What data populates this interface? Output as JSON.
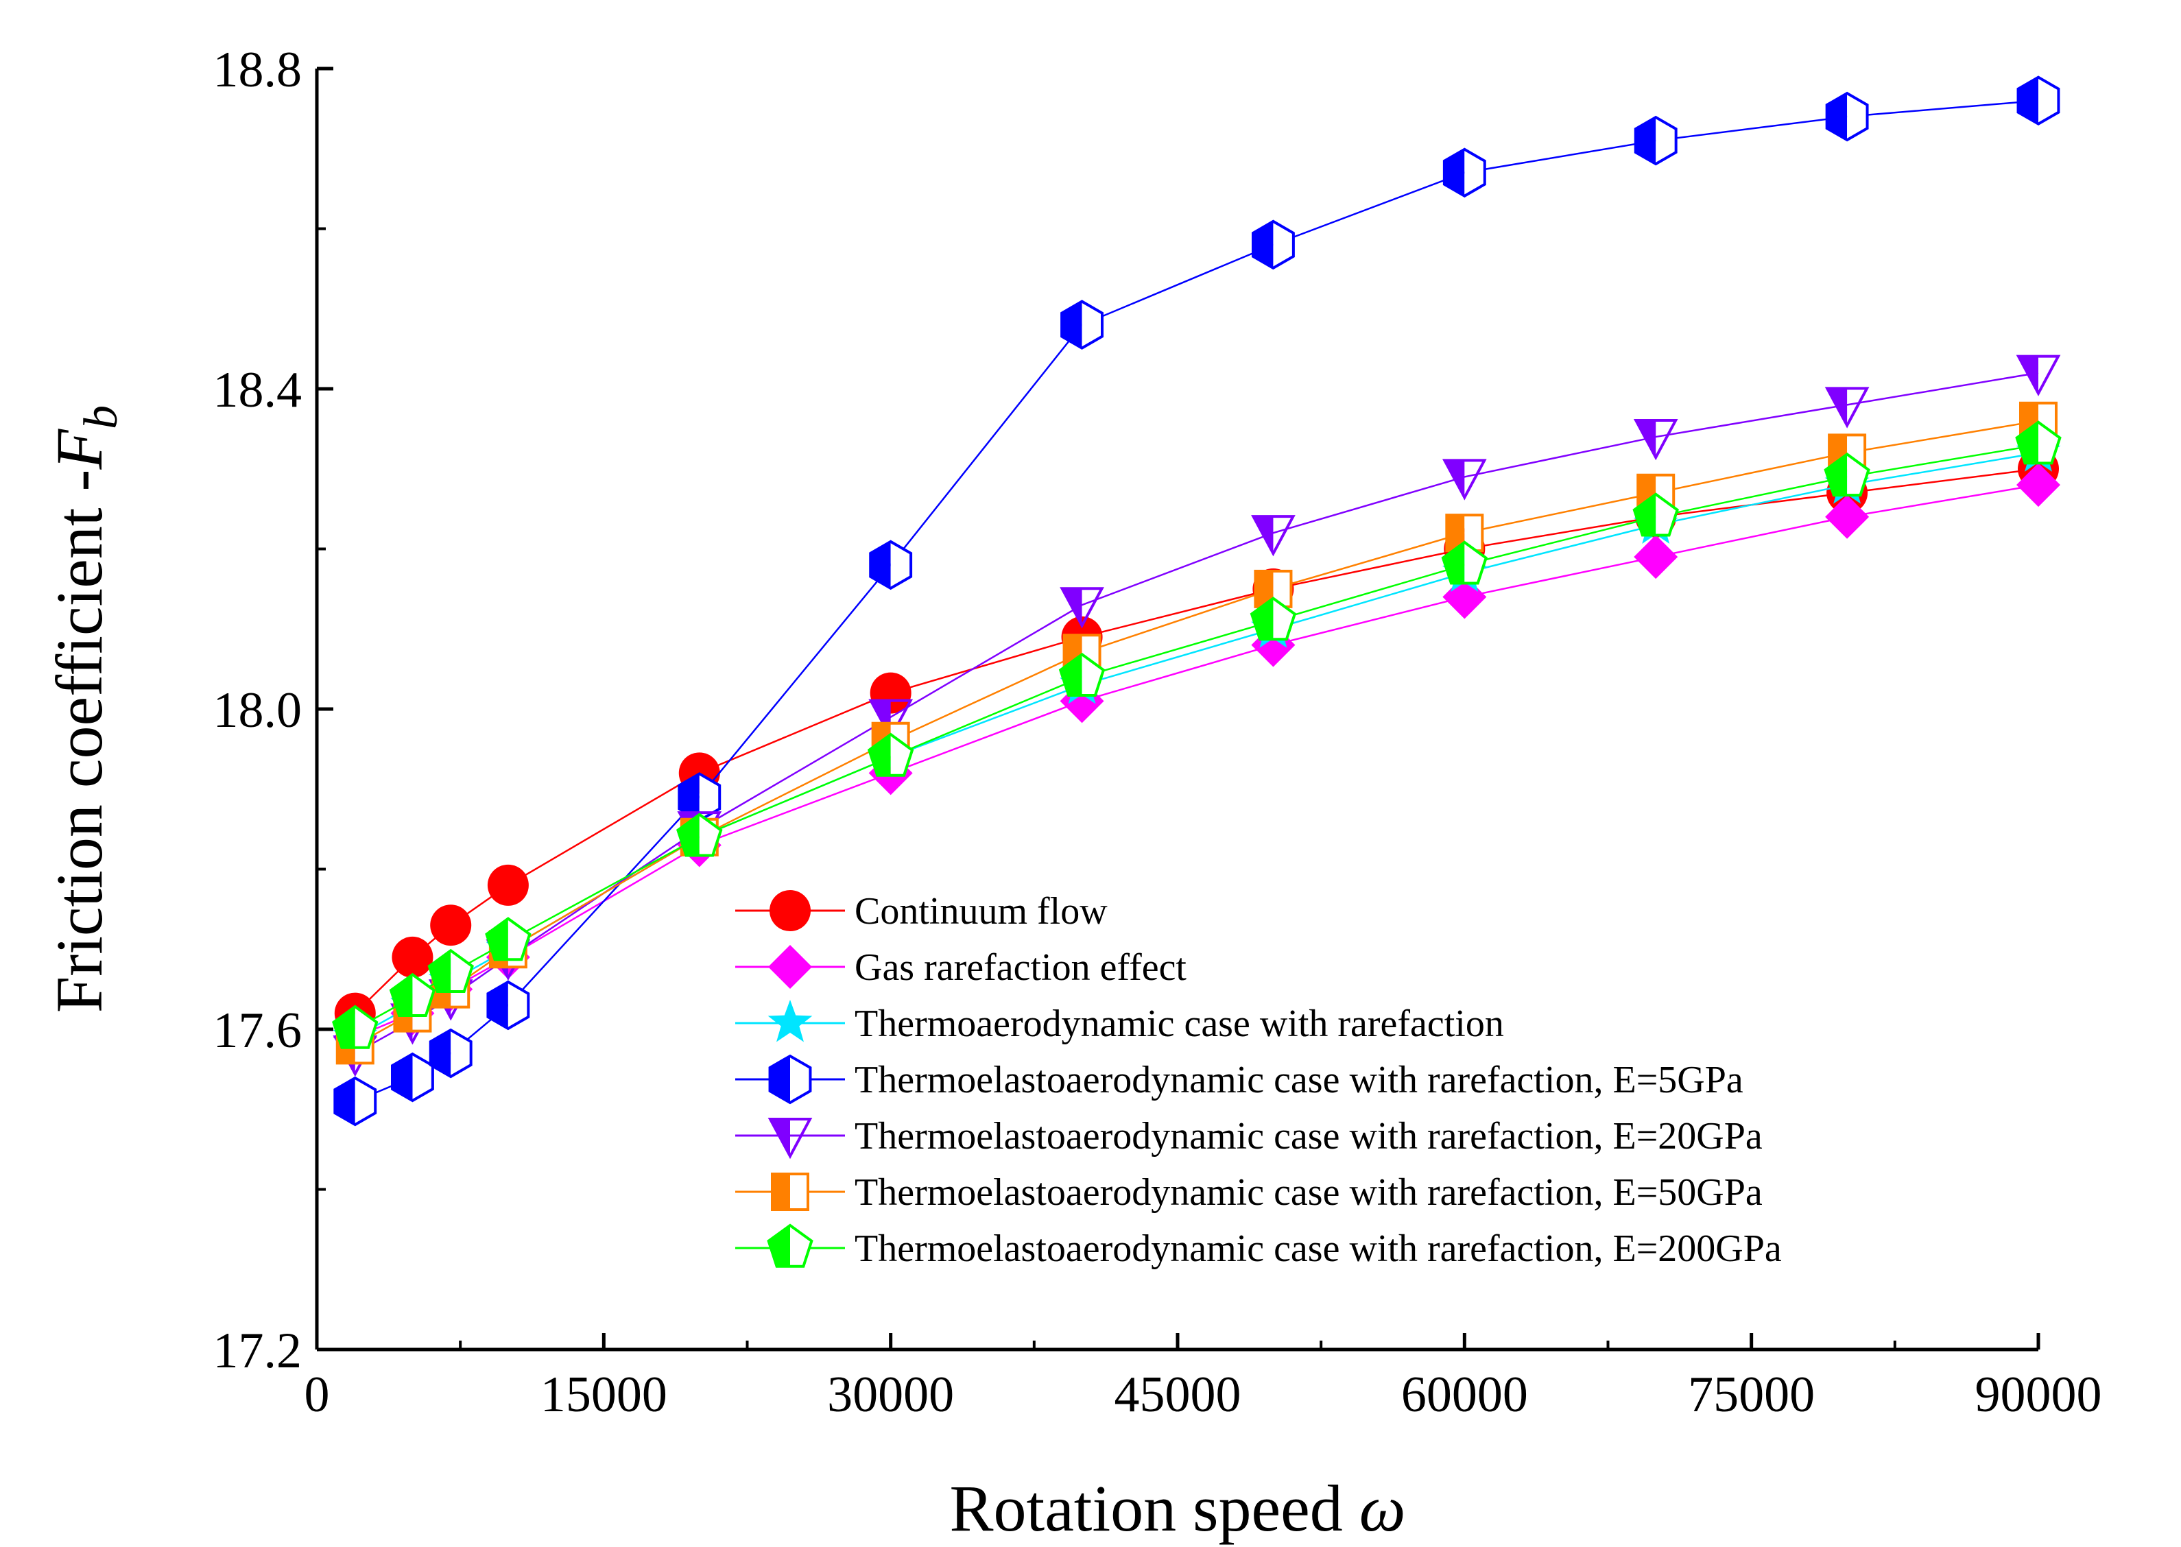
{
  "chart_data": {
    "type": "line",
    "title": "",
    "xlabel": "Rotation speed",
    "xlabel_symbol": "ω",
    "ylabel": "Friction coefficient -",
    "ylabel_symbol": "F",
    "ylabel_subscript": "b",
    "xlim": [
      0,
      90000
    ],
    "ylim": [
      17.2,
      18.8
    ],
    "xticks": [
      0,
      15000,
      30000,
      45000,
      60000,
      75000,
      90000
    ],
    "xtick_labels": [
      "0",
      "15000",
      "30000",
      "45000",
      "60000",
      "75000",
      "90000"
    ],
    "yticks": [
      17.2,
      17.6,
      18.0,
      18.4,
      18.8
    ],
    "ytick_labels": [
      "17.2",
      "17.6",
      "18.0",
      "18.4",
      "18.8"
    ],
    "grid": false,
    "legend_position": "lower-right",
    "x": [
      2000,
      5000,
      7000,
      10000,
      20000,
      30000,
      40000,
      50000,
      60000,
      70000,
      80000,
      90000
    ],
    "series": [
      {
        "name": "Continuum flow",
        "marker": "circle",
        "color": "#ff0000",
        "values": [
          17.62,
          17.69,
          17.73,
          17.78,
          17.92,
          18.02,
          18.09,
          18.15,
          18.2,
          18.24,
          18.27,
          18.3
        ]
      },
      {
        "name": "Gas rarefaction effect",
        "marker": "diamond",
        "color": "#ff00ff",
        "values": [
          17.59,
          17.62,
          17.65,
          17.69,
          17.83,
          17.92,
          18.01,
          18.08,
          18.14,
          18.19,
          18.24,
          18.28
        ]
      },
      {
        "name": "Thermoaerodynamic case with rarefaction",
        "marker": "star",
        "color": "#00e5ff",
        "values": [
          17.59,
          17.63,
          17.66,
          17.7,
          17.84,
          17.94,
          18.03,
          18.1,
          18.17,
          18.23,
          18.28,
          18.32
        ]
      },
      {
        "name": "Thermoelastoaerodynamic case with rarefaction, E=5GPa",
        "marker": "hexagon-half",
        "color": "#0000ff",
        "values": [
          17.51,
          17.54,
          17.57,
          17.63,
          17.89,
          18.18,
          18.48,
          18.58,
          18.67,
          18.71,
          18.74,
          18.76
        ]
      },
      {
        "name": "Thermoelastoaerodynamic case with rarefaction, E=20GPa",
        "marker": "triangle-down",
        "color": "#8000ff",
        "values": [
          17.57,
          17.61,
          17.64,
          17.69,
          17.85,
          17.99,
          18.13,
          18.22,
          18.29,
          18.34,
          18.38,
          18.42
        ]
      },
      {
        "name": "Thermoelastoaerodynamic case with rarefaction, E=50GPa",
        "marker": "square-half",
        "color": "#ff8000",
        "values": [
          17.58,
          17.62,
          17.65,
          17.7,
          17.84,
          17.96,
          18.07,
          18.15,
          18.22,
          18.27,
          18.32,
          18.36
        ]
      },
      {
        "name": "Thermoelastoaerodynamic case with rarefaction, E=200GPa",
        "marker": "pentagon-half",
        "color": "#00ff00",
        "values": [
          17.6,
          17.64,
          17.67,
          17.71,
          17.84,
          17.94,
          18.04,
          18.11,
          18.18,
          18.24,
          18.29,
          18.33
        ]
      }
    ]
  }
}
